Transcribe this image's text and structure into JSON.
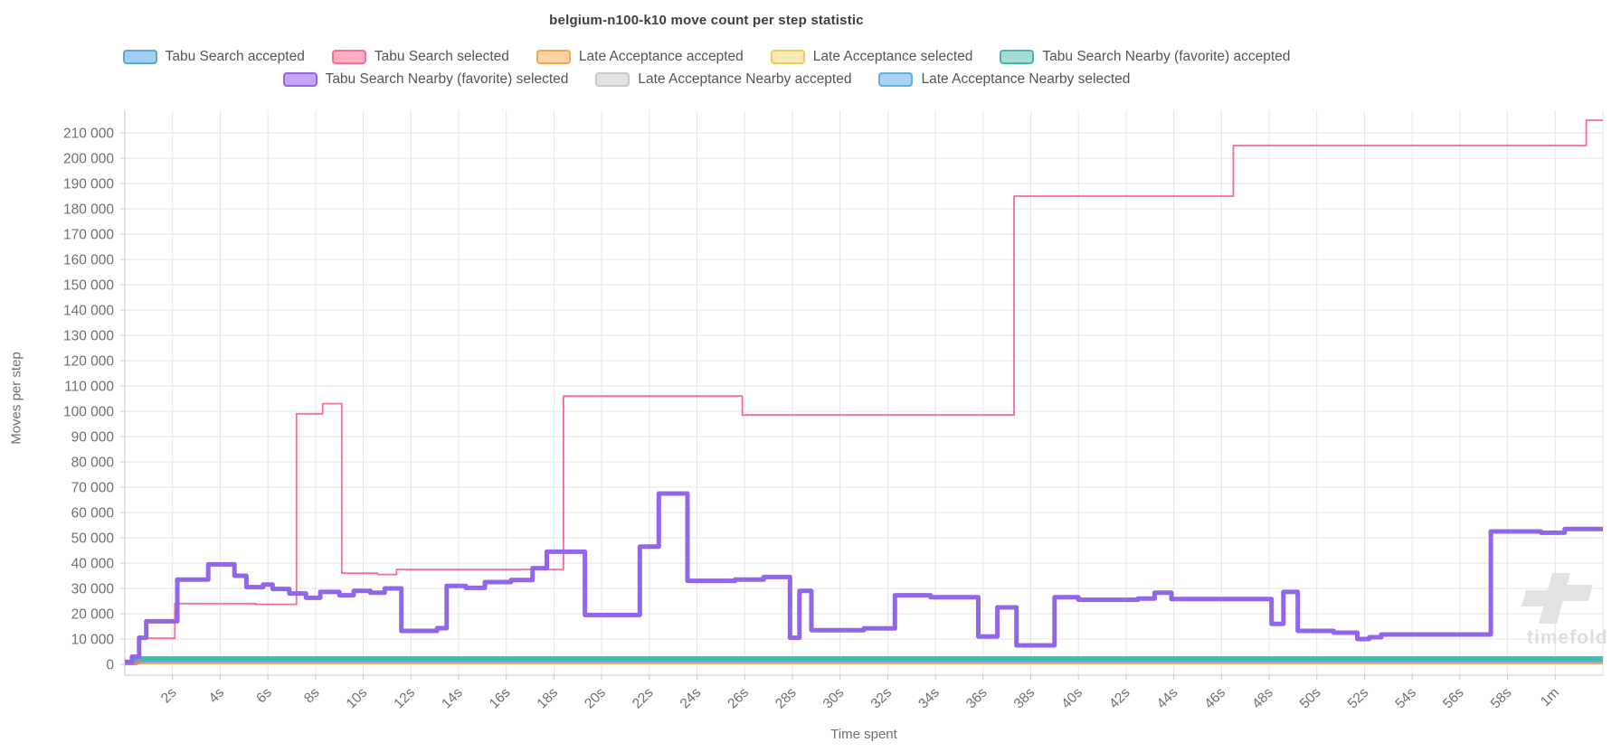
{
  "title": "belgium-n100-k10 move count per step statistic",
  "watermark": {
    "text": "timefold"
  },
  "chart_data": {
    "type": "line",
    "step": true,
    "title": "belgium-n100-k10 move count per step statistic",
    "xlabel": "Time spent",
    "ylabel": "Moves per step",
    "x_unit": "seconds",
    "xlim": [
      0,
      62
    ],
    "ylim": [
      0,
      215000
    ],
    "grid": true,
    "legend_position": "top",
    "legend_rows": [
      5,
      3
    ],
    "x_ticks": [
      {
        "t": 2,
        "label": "2s"
      },
      {
        "t": 4,
        "label": "4s"
      },
      {
        "t": 6,
        "label": "6s"
      },
      {
        "t": 8,
        "label": "8s"
      },
      {
        "t": 10,
        "label": "10s"
      },
      {
        "t": 12,
        "label": "12s"
      },
      {
        "t": 14,
        "label": "14s"
      },
      {
        "t": 16,
        "label": "16s"
      },
      {
        "t": 18,
        "label": "18s"
      },
      {
        "t": 20,
        "label": "20s"
      },
      {
        "t": 22,
        "label": "22s"
      },
      {
        "t": 24,
        "label": "24s"
      },
      {
        "t": 26,
        "label": "26s"
      },
      {
        "t": 28,
        "label": "28s"
      },
      {
        "t": 30,
        "label": "30s"
      },
      {
        "t": 32,
        "label": "32s"
      },
      {
        "t": 34,
        "label": "34s"
      },
      {
        "t": 36,
        "label": "36s"
      },
      {
        "t": 38,
        "label": "38s"
      },
      {
        "t": 40,
        "label": "40s"
      },
      {
        "t": 42,
        "label": "42s"
      },
      {
        "t": 44,
        "label": "44s"
      },
      {
        "t": 46,
        "label": "46s"
      },
      {
        "t": 48,
        "label": "48s"
      },
      {
        "t": 50,
        "label": "50s"
      },
      {
        "t": 52,
        "label": "52s"
      },
      {
        "t": 54,
        "label": "54s"
      },
      {
        "t": 56,
        "label": "56s"
      },
      {
        "t": 58,
        "label": "58s"
      },
      {
        "t": 60,
        "label": "1m"
      },
      {
        "t": 62,
        "label": ""
      }
    ],
    "y_ticks": [
      {
        "v": 0,
        "label": "0"
      },
      {
        "v": 10000,
        "label": "10 000"
      },
      {
        "v": 20000,
        "label": "20 000"
      },
      {
        "v": 30000,
        "label": "30 000"
      },
      {
        "v": 40000,
        "label": "40 000"
      },
      {
        "v": 50000,
        "label": "50 000"
      },
      {
        "v": 60000,
        "label": "60 000"
      },
      {
        "v": 70000,
        "label": "70 000"
      },
      {
        "v": 80000,
        "label": "80 000"
      },
      {
        "v": 90000,
        "label": "90 000"
      },
      {
        "v": 100000,
        "label": "100 000"
      },
      {
        "v": 110000,
        "label": "110 000"
      },
      {
        "v": 120000,
        "label": "120 000"
      },
      {
        "v": 130000,
        "label": "130 000"
      },
      {
        "v": 140000,
        "label": "140 000"
      },
      {
        "v": 150000,
        "label": "150 000"
      },
      {
        "v": 160000,
        "label": "160 000"
      },
      {
        "v": 170000,
        "label": "170 000"
      },
      {
        "v": 180000,
        "label": "180 000"
      },
      {
        "v": 190000,
        "label": "190 000"
      },
      {
        "v": 200000,
        "label": "200 000"
      },
      {
        "v": 210000,
        "label": "210 000"
      }
    ],
    "series": [
      {
        "name": "Tabu Search accepted",
        "stroke": "#5ba7dc",
        "legend_fill": "#a0cff0",
        "width": 3,
        "points": [
          [
            0,
            300
          ],
          [
            0.5,
            2000
          ],
          [
            62,
            2000
          ]
        ]
      },
      {
        "name": "Tabu Search selected",
        "stroke": "#f76e8e",
        "legend_fill": "#fbaec4",
        "width": 1.8,
        "points": [
          [
            0,
            500
          ],
          [
            0.6,
            10300
          ],
          [
            2.1,
            24000
          ],
          [
            5.5,
            23700
          ],
          [
            7.2,
            99000
          ],
          [
            8.3,
            103000
          ],
          [
            9.1,
            36000
          ],
          [
            10.6,
            35500
          ],
          [
            11.4,
            37500
          ],
          [
            18.4,
            106000
          ],
          [
            25.9,
            98500
          ],
          [
            37.3,
            185000
          ],
          [
            46.5,
            205000
          ],
          [
            61.3,
            215000
          ],
          [
            62,
            215000
          ]
        ]
      },
      {
        "name": "Late Acceptance accepted",
        "stroke": "#f5a54a",
        "legend_fill": "#fbd3a2",
        "width": 2,
        "points": [
          [
            0,
            400
          ],
          [
            62,
            400
          ]
        ]
      },
      {
        "name": "Late Acceptance selected",
        "stroke": "#f0cc56",
        "legend_fill": "#faeab4",
        "width": 2,
        "points": [
          [
            0,
            550
          ],
          [
            62,
            550
          ]
        ]
      },
      {
        "name": "Tabu Search Nearby (favorite) accepted",
        "stroke": "#45b8ac",
        "legend_fill": "#a5dcd6",
        "width": 5,
        "points": [
          [
            0,
            500
          ],
          [
            0.4,
            2300
          ],
          [
            62,
            2300
          ]
        ]
      },
      {
        "name": "Tabu Search Nearby (favorite) selected",
        "stroke": "#9166e8",
        "legend_fill": "#c4a5f2",
        "width": 5,
        "points": [
          [
            0,
            1000
          ],
          [
            0.3,
            3000
          ],
          [
            0.6,
            10500
          ],
          [
            0.9,
            17000
          ],
          [
            2.2,
            33500
          ],
          [
            3.5,
            39500
          ],
          [
            4.6,
            35000
          ],
          [
            5.1,
            30500
          ],
          [
            5.8,
            31500
          ],
          [
            6.2,
            29800
          ],
          [
            6.9,
            28000
          ],
          [
            7.6,
            26300
          ],
          [
            8.2,
            28600
          ],
          [
            9,
            27300
          ],
          [
            9.6,
            29000
          ],
          [
            10.3,
            28300
          ],
          [
            10.9,
            30000
          ],
          [
            11.6,
            13200
          ],
          [
            13.1,
            14300
          ],
          [
            13.5,
            31000
          ],
          [
            14.3,
            30200
          ],
          [
            15.1,
            32500
          ],
          [
            16.2,
            33300
          ],
          [
            17.1,
            38000
          ],
          [
            17.7,
            44500
          ],
          [
            19.3,
            19500
          ],
          [
            21.6,
            46500
          ],
          [
            22.4,
            67500
          ],
          [
            23.6,
            33000
          ],
          [
            25.6,
            33500
          ],
          [
            26.8,
            34500
          ],
          [
            27.9,
            10500
          ],
          [
            28.3,
            29000
          ],
          [
            28.8,
            13500
          ],
          [
            31,
            14200
          ],
          [
            32.3,
            27300
          ],
          [
            33.8,
            26500
          ],
          [
            35.8,
            11000
          ],
          [
            36.6,
            22500
          ],
          [
            37.4,
            7500
          ],
          [
            39,
            26500
          ],
          [
            40,
            25500
          ],
          [
            42.5,
            26000
          ],
          [
            43.2,
            28300
          ],
          [
            43.9,
            25800
          ],
          [
            48.1,
            16000
          ],
          [
            48.6,
            28600
          ],
          [
            49.2,
            13200
          ],
          [
            50.7,
            12500
          ],
          [
            51.7,
            10000
          ],
          [
            52.2,
            10700
          ],
          [
            52.7,
            11800
          ],
          [
            57.3,
            52500
          ],
          [
            59.4,
            52000
          ],
          [
            60.4,
            53500
          ],
          [
            62,
            53500
          ]
        ]
      },
      {
        "name": "Late Acceptance Nearby accepted",
        "stroke": "#c9c9c9",
        "legend_fill": "#e4e4e4",
        "width": 2,
        "points": [
          [
            0,
            800
          ],
          [
            62,
            800
          ]
        ]
      },
      {
        "name": "Late Acceptance Nearby selected",
        "stroke": "#64aee0",
        "legend_fill": "#a6d4f2",
        "width": 3,
        "points": [
          [
            0,
            1100
          ],
          [
            62,
            1100
          ]
        ]
      }
    ],
    "draw_order": [
      3,
      6,
      7,
      0,
      4,
      2,
      1,
      5
    ],
    "colors": {
      "grid": "#e6e6e6",
      "axis": "#c9c9c9",
      "tick_text": "#707070",
      "watermark": "#e2e2e2"
    }
  }
}
